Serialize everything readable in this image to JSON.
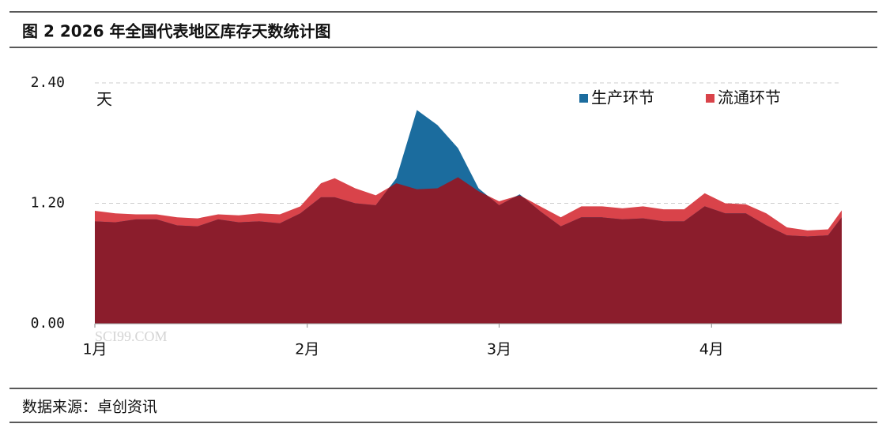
{
  "chart_data": {
    "type": "area",
    "title": "图 2 2026 年全国代表地区库存天数统计图",
    "y_label": "天",
    "source": "数据来源：卓创资讯",
    "watermark": "SCI99.COM",
    "x": [
      0,
      3,
      6,
      9,
      12,
      15,
      18,
      21,
      24,
      27,
      30,
      33,
      35,
      38,
      41,
      44,
      47,
      50,
      53,
      56,
      59,
      62,
      65,
      68,
      71,
      74,
      77,
      80,
      83,
      86,
      89,
      92,
      95,
      98,
      101,
      104,
      107,
      109
    ],
    "xlim": [
      0,
      109
    ],
    "xticks": [
      {
        "value": 0,
        "label": "1月"
      },
      {
        "value": 31,
        "label": "2月"
      },
      {
        "value": 59,
        "label": "3月"
      },
      {
        "value": 90,
        "label": "4月"
      }
    ],
    "ylim": [
      0,
      2.4
    ],
    "yticks": [
      {
        "value": 0,
        "label": "0.00"
      },
      {
        "value": 1.2,
        "label": "1.20"
      },
      {
        "value": 2.4,
        "label": "2.40"
      }
    ],
    "grid": true,
    "legend": "top-right",
    "overlap_color": "#8b1d2c",
    "series": [
      {
        "name": "生产环节",
        "color": "#1b6c9e",
        "values": [
          1.02,
          1.01,
          1.04,
          1.04,
          0.98,
          0.97,
          1.04,
          1.01,
          1.02,
          1.0,
          1.1,
          1.26,
          1.26,
          1.2,
          1.18,
          1.45,
          2.13,
          1.98,
          1.75,
          1.35,
          1.18,
          1.29,
          1.12,
          0.97,
          1.06,
          1.06,
          1.04,
          1.05,
          1.02,
          1.02,
          1.17,
          1.1,
          1.1,
          0.98,
          0.88,
          0.87,
          0.88,
          1.06
        ]
      },
      {
        "name": "流通环节",
        "color": "#d9434a",
        "values": [
          1.125,
          1.1,
          1.09,
          1.09,
          1.06,
          1.05,
          1.09,
          1.08,
          1.1,
          1.09,
          1.17,
          1.4,
          1.45,
          1.35,
          1.28,
          1.4,
          1.34,
          1.35,
          1.46,
          1.32,
          1.22,
          1.28,
          1.17,
          1.06,
          1.17,
          1.17,
          1.15,
          1.17,
          1.14,
          1.14,
          1.3,
          1.2,
          1.19,
          1.1,
          0.96,
          0.93,
          0.94,
          1.13
        ]
      }
    ]
  }
}
